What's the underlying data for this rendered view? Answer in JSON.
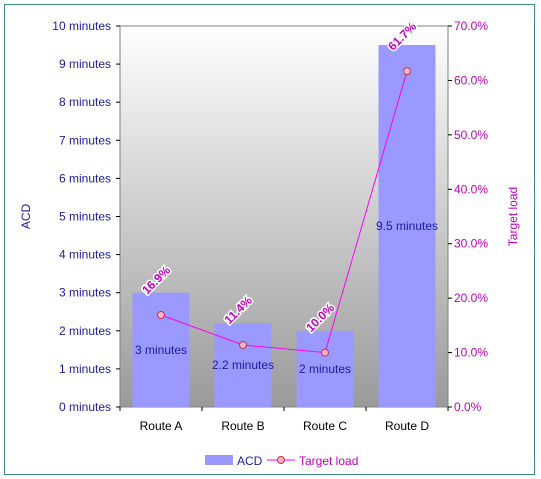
{
  "chart_data": {
    "type": "bar+line",
    "categories": [
      "Route A",
      "Route B",
      "Route C",
      "Route D"
    ],
    "series": [
      {
        "name": "ACD",
        "type": "bar",
        "axis": "left",
        "values": [
          3,
          2.2,
          2,
          9.5
        ],
        "data_labels": [
          "3 minutes",
          "2.2 minutes",
          "2 minutes",
          "9.5 minutes"
        ],
        "color": "#9999ff"
      },
      {
        "name": "Target load",
        "type": "line",
        "axis": "right",
        "values": [
          16.9,
          11.4,
          10.0,
          61.7
        ],
        "data_labels": [
          "16.9%",
          "11.4%",
          "10.0%",
          "61.7%"
        ],
        "color": "#ff00ff"
      }
    ],
    "ylabel": "ACD",
    "y2label": "Target load",
    "ylim": [
      0,
      10
    ],
    "y2lim": [
      0,
      70
    ],
    "yticks": [
      "0 minutes",
      "1 minutes",
      "2 minutes",
      "3 minutes",
      "4 minutes",
      "5 minutes",
      "6 minutes",
      "7 minutes",
      "8 minutes",
      "9 minutes",
      "10 minutes"
    ],
    "y2ticks": [
      "0.0%",
      "10.0%",
      "20.0%",
      "30.0%",
      "40.0%",
      "50.0%",
      "60.0%",
      "70.0%"
    ],
    "legend_position": "bottom",
    "plot_background": "gradient white to gray"
  }
}
